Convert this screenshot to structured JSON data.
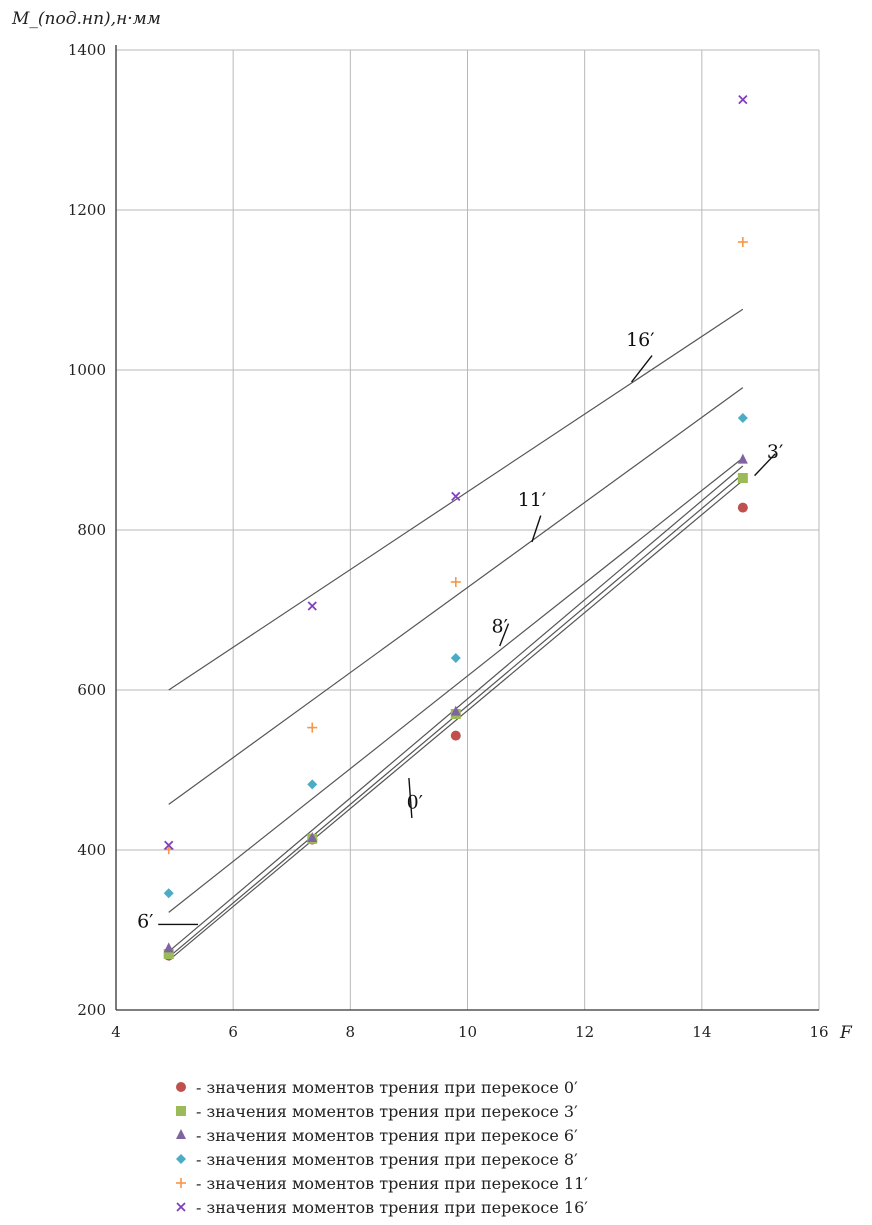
{
  "chart_data": {
    "type": "scatter",
    "y_axis_title": "M_(под.нп),н·мм",
    "x_axis_title": "F",
    "xlim": [
      4,
      16
    ],
    "ylim": [
      200,
      1400
    ],
    "x_ticks": [
      "4",
      "6",
      "8",
      "10",
      "12",
      "14",
      "16"
    ],
    "y_ticks": [
      "200",
      "400",
      "600",
      "800",
      "1000",
      "1200",
      "1400"
    ],
    "grid": true,
    "series": [
      {
        "name": "- значения моментов трения при перекосе 0′",
        "marker": "circle",
        "color": "#c0504d",
        "points": [
          [
            4.9,
            268
          ],
          [
            7.35,
            413
          ],
          [
            9.8,
            543
          ],
          [
            14.7,
            828
          ]
        ]
      },
      {
        "name": "- значения моментов трения при перекосе 3′",
        "marker": "square",
        "color": "#9bbb59",
        "points": [
          [
            4.9,
            270
          ],
          [
            7.35,
            414
          ],
          [
            9.8,
            570
          ],
          [
            14.7,
            865
          ]
        ]
      },
      {
        "name": "- значения моментов трения при перекосе 6′",
        "marker": "triangle",
        "color": "#8064a2",
        "points": [
          [
            4.9,
            277
          ],
          [
            7.35,
            415
          ],
          [
            9.8,
            573
          ],
          [
            14.7,
            888
          ]
        ]
      },
      {
        "name": "- значения моментов трения при перекосе 8′",
        "marker": "diamond",
        "color": "#4bacc6",
        "points": [
          [
            4.9,
            346
          ],
          [
            7.35,
            482
          ],
          [
            9.8,
            640
          ],
          [
            14.7,
            940
          ]
        ]
      },
      {
        "name": "- значения моментов трения при перекосе 11′",
        "marker": "plus",
        "color": "#f79646",
        "points": [
          [
            4.9,
            401
          ],
          [
            7.35,
            553
          ],
          [
            9.8,
            735
          ],
          [
            14.7,
            1160
          ]
        ]
      },
      {
        "name": "- значения моментов трения при перекосе 16′",
        "marker": "cross",
        "color": "#7f3fbf",
        "points": [
          [
            4.9,
            406
          ],
          [
            7.35,
            705
          ],
          [
            9.8,
            842
          ],
          [
            14.7,
            1338
          ]
        ]
      }
    ],
    "trend_lines": [
      {
        "label": "0′",
        "from": [
          4.9,
          262
        ],
        "to": [
          14.7,
          862
        ]
      },
      {
        "label": "3′",
        "from": [
          4.9,
          266
        ],
        "to": [
          14.7,
          870
        ]
      },
      {
        "label": "6′",
        "from": [
          4.9,
          273
        ],
        "to": [
          14.7,
          880
        ]
      },
      {
        "label": "8′",
        "from": [
          4.9,
          322
        ],
        "to": [
          14.7,
          890
        ]
      },
      {
        "label": "11′",
        "from": [
          4.9,
          457
        ],
        "to": [
          14.7,
          978
        ]
      },
      {
        "label": "16′",
        "from": [
          4.9,
          600
        ],
        "to": [
          14.7,
          1076
        ]
      }
    ],
    "line_labels": [
      {
        "text": "16′",
        "pos": [
          12.95,
          1030
        ],
        "leader_from": [
          12.8,
          985
        ],
        "leader_to": [
          13.15,
          1018
        ]
      },
      {
        "text": "11′",
        "pos": [
          11.1,
          830
        ],
        "leader_from": [
          11.1,
          785
        ],
        "leader_to": [
          11.25,
          818
        ]
      },
      {
        "text": "8′",
        "pos": [
          10.55,
          672
        ],
        "leader_from": [
          10.55,
          655
        ],
        "leader_to": [
          10.7,
          683
        ]
      },
      {
        "text": "0′",
        "pos": [
          9.1,
          452
        ],
        "leader_from": [
          9.0,
          490
        ],
        "leader_to": [
          9.05,
          440
        ]
      },
      {
        "text": "3′",
        "pos": [
          15.25,
          890
        ],
        "leader_from": [
          14.9,
          868
        ],
        "leader_to": [
          15.25,
          895
        ]
      },
      {
        "text": "6′",
        "pos": [
          4.5,
          303
        ],
        "leader_from": [
          4.72,
          307
        ],
        "leader_to": [
          5.4,
          307
        ]
      }
    ]
  }
}
